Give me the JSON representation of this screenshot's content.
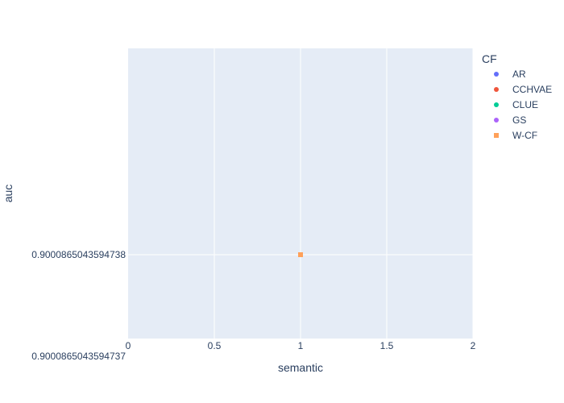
{
  "chart_data": {
    "type": "scatter",
    "xlabel": "semantic",
    "ylabel": "auc",
    "xlim": [
      0,
      2
    ],
    "x_ticks": [
      "0",
      "0.5",
      "1",
      "1.5",
      "2"
    ],
    "x_tick_values": [
      0,
      0.5,
      1,
      1.5,
      2
    ],
    "y_ticks": [
      "0.9000865043594738"
    ],
    "y_bottom_label": "0.9000865043594737",
    "grid": true,
    "legend": {
      "title": "CF",
      "placement": "right"
    },
    "series": [
      {
        "name": "AR",
        "color": "#636efa",
        "symbol": "circle",
        "points": []
      },
      {
        "name": "CCHVAE",
        "color": "#EF553B",
        "symbol": "circle",
        "points": []
      },
      {
        "name": "CLUE",
        "color": "#00cc96",
        "symbol": "circle",
        "points": []
      },
      {
        "name": "GS",
        "color": "#ab63fa",
        "symbol": "circle",
        "points": []
      },
      {
        "name": "W-CF",
        "color": "#FFA15A",
        "symbol": "square",
        "points": [
          {
            "x": 1,
            "y": 0.9000865043594738
          }
        ]
      }
    ],
    "colors": {
      "plot_bg": "#E5ECF6",
      "grid": "#ffffff",
      "text": "#2a3f5f"
    }
  }
}
